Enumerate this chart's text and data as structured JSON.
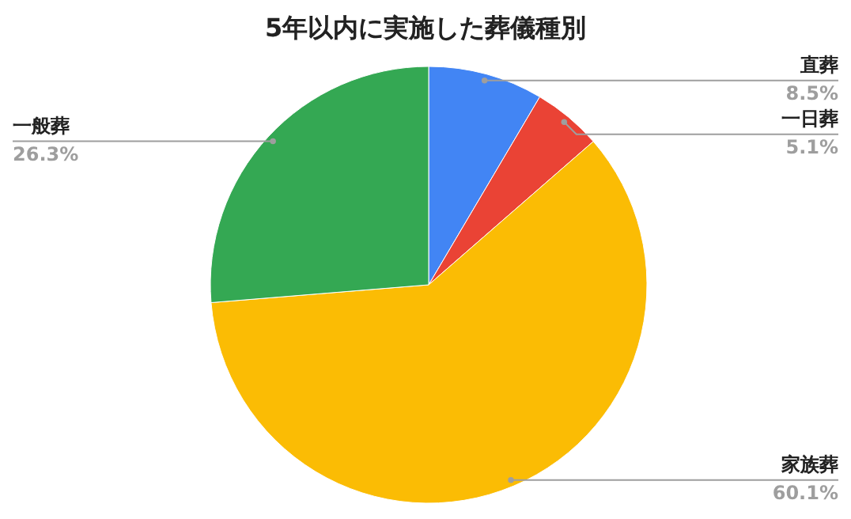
{
  "chart_data": {
    "type": "pie",
    "title": "5年以内に実施した葬儀種別",
    "categories": [
      "直葬",
      "一日葬",
      "家族葬",
      "一般葬"
    ],
    "values": [
      8.5,
      5.1,
      60.1,
      26.3
    ],
    "colors": [
      "#4285f4",
      "#ea4335",
      "#fbbc04",
      "#34a853"
    ],
    "value_labels": [
      "8.5%",
      "5.1%",
      "60.1%",
      "26.3%"
    ]
  }
}
